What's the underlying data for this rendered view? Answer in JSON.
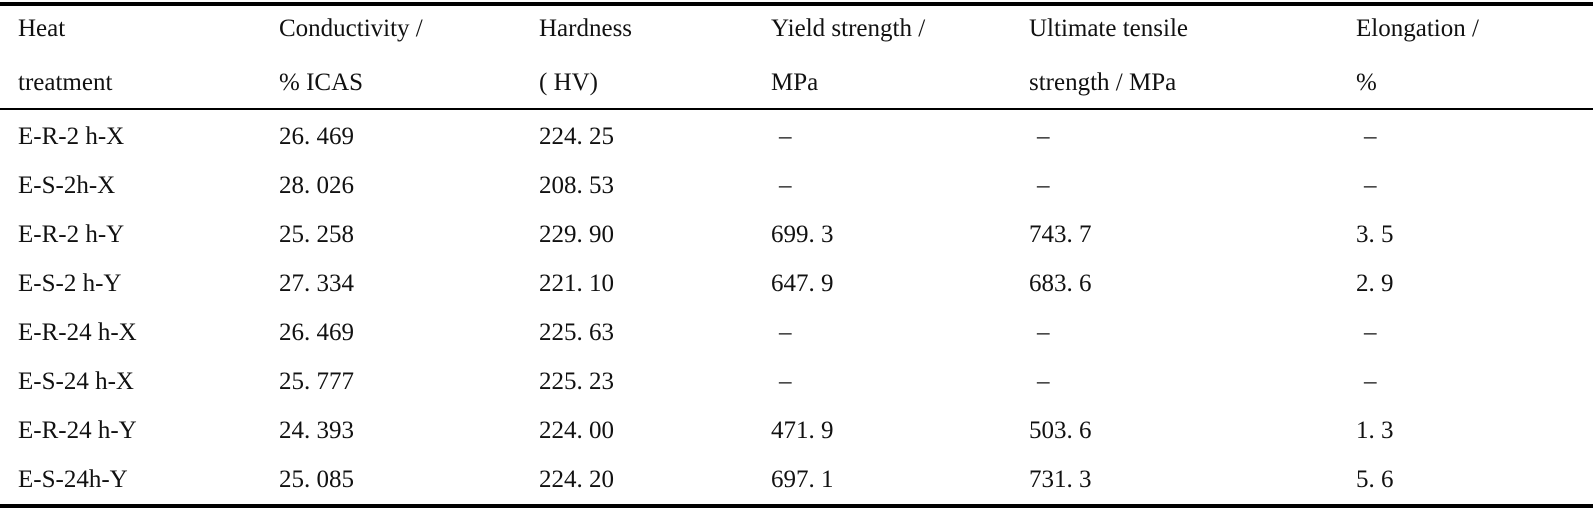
{
  "table": {
    "header": {
      "line1": [
        "Heat",
        "Conductivity /",
        "Hardness",
        "Yield strength /",
        "Ultimate tensile",
        "Elongation /"
      ],
      "line2": [
        "treatment",
        "% ICAS",
        "( HV)",
        "MPa",
        "strength / MPa",
        "%"
      ]
    },
    "rows": [
      [
        "E-R-2 h-X",
        "26. 469",
        "224. 25",
        "–",
        "–",
        "–"
      ],
      [
        "E-S-2h-X",
        "28. 026",
        "208. 53",
        "–",
        "–",
        "–"
      ],
      [
        "E-R-2 h-Y",
        "25. 258",
        "229. 90",
        "699. 3",
        "743. 7",
        "3. 5"
      ],
      [
        "E-S-2 h-Y",
        "27. 334",
        "221. 10",
        "647. 9",
        "683. 6",
        "2. 9"
      ],
      [
        "E-R-24 h-X",
        "26. 469",
        "225. 63",
        "–",
        "–",
        "–"
      ],
      [
        "E-S-24 h-X",
        "25. 777",
        "225. 23",
        "–",
        "–",
        "–"
      ],
      [
        "E-R-24 h-Y",
        "24. 393",
        "224. 00",
        "471. 9",
        "503. 6",
        "1. 3"
      ],
      [
        "E-S-24h-Y",
        "25. 085",
        "224. 20",
        "697. 1",
        "731. 3",
        "5. 6"
      ]
    ]
  }
}
